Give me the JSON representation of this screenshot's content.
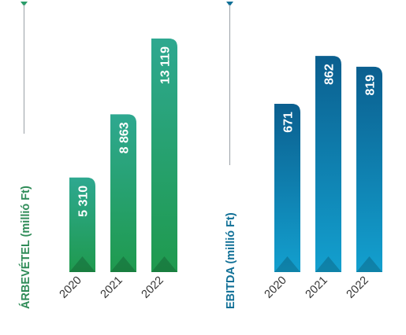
{
  "chart_data": [
    {
      "type": "bar",
      "ylabel": "ÁRBEVÉTEL (millió Ft)",
      "categories": [
        "2020",
        "2021",
        "2022"
      ],
      "values": [
        5310,
        8863,
        13119
      ],
      "value_labels": [
        "5 310",
        "8 863",
        "13 119"
      ],
      "ylim": [
        0,
        14400
      ],
      "grid": false,
      "color_top": "#2ea890",
      "color_bottom": "#1f9a4e",
      "label_color": "#2e8b57"
    },
    {
      "type": "bar",
      "ylabel": "EBITDA (millió Ft)",
      "categories": [
        "2020",
        "2021",
        "2022"
      ],
      "values": [
        671,
        862,
        819
      ],
      "value_labels": [
        "671",
        "862",
        "819"
      ],
      "ylim": [
        0,
        944
      ],
      "grid": false,
      "color_top": "#0b5f8f",
      "color_bottom": "#13a0cf",
      "label_color": "#0f6f96"
    }
  ]
}
